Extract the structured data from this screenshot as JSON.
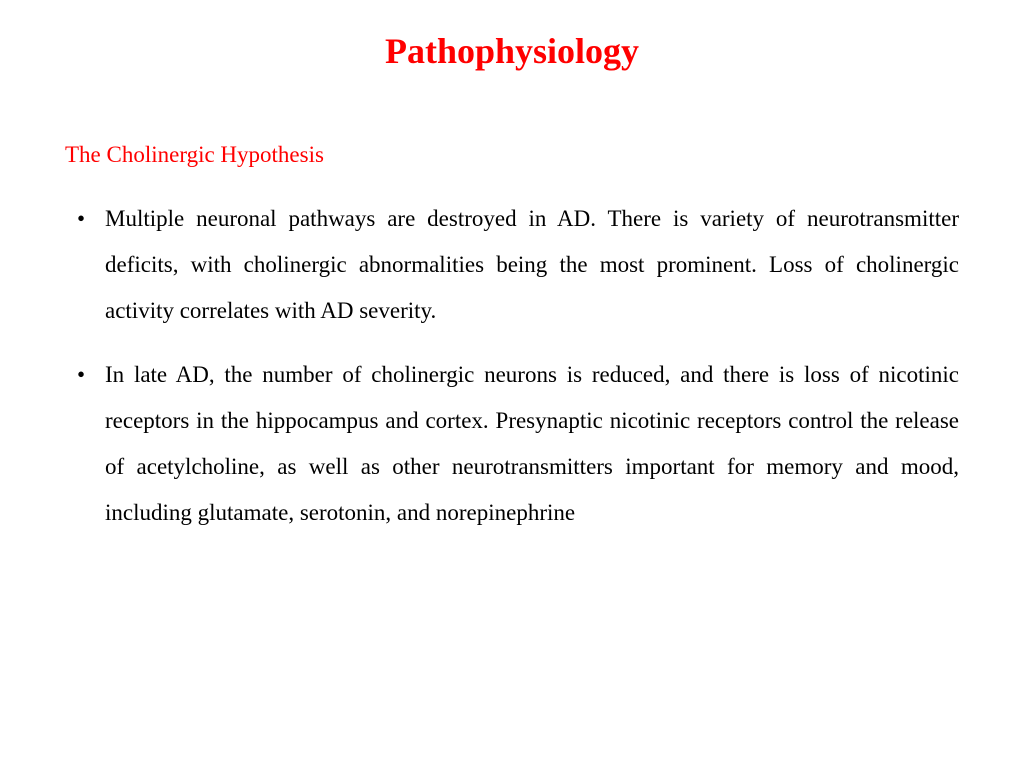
{
  "slide": {
    "title": "Pathophysiology",
    "title_color": "#ff0000",
    "title_fontsize": 36,
    "title_fontweight": "bold",
    "section_heading": "The Cholinergic Hypothesis",
    "section_heading_color": "#ff0000",
    "section_heading_fontsize": 23,
    "body_color": "#000000",
    "body_fontsize": 23,
    "line_height": 2.0,
    "bullets": [
      "Multiple neuronal pathways are destroyed in AD. There is variety of neurotransmitter deficits, with cholinergic abnormalities being the most prominent. Loss of cholinergic activity correlates with AD severity.",
      "In late AD, the number of cholinergic neurons is reduced, and there is loss of nicotinic receptors in the hippocampus and cortex. Presynaptic nicotinic receptors control the release of acetylcholine, as well as other neurotransmitters important for memory and mood, including glutamate, serotonin, and norepinephrine"
    ],
    "background_color": "#ffffff"
  }
}
